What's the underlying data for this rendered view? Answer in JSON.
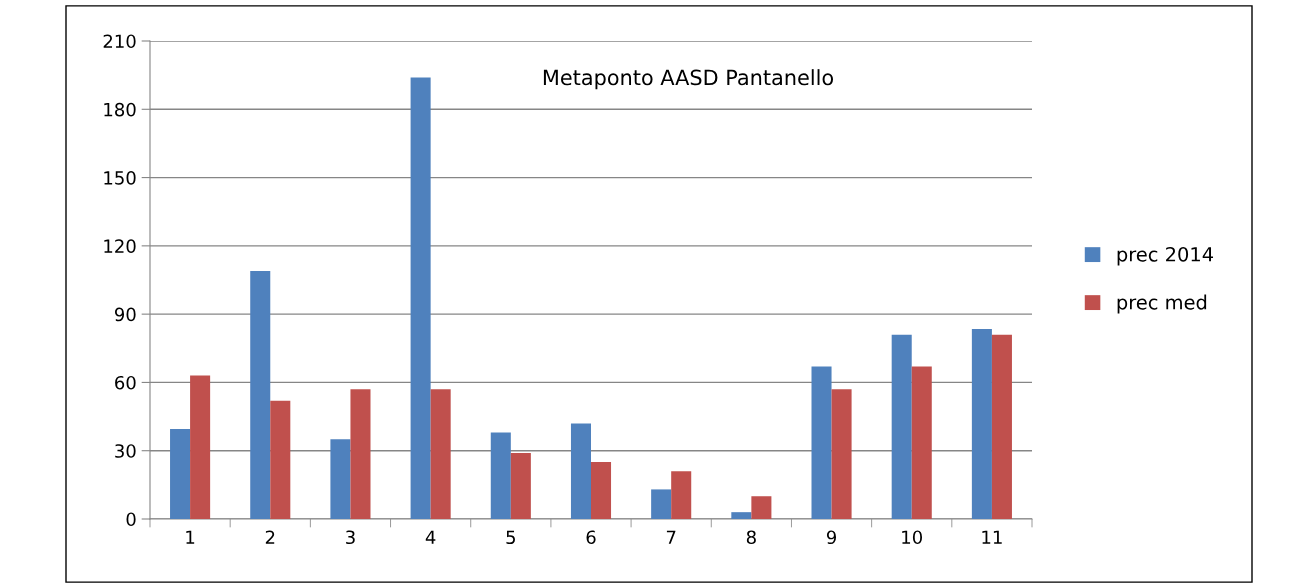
{
  "chart_data": {
    "type": "bar",
    "title": "Metaponto AASD Pantanello",
    "categories": [
      "1",
      "2",
      "3",
      "4",
      "5",
      "6",
      "7",
      "8",
      "9",
      "10",
      "11"
    ],
    "series": [
      {
        "name": "prec 2014",
        "color": "#4f81bd",
        "values": [
          39.5,
          109,
          35,
          194,
          38,
          42,
          13,
          3,
          67,
          81,
          83.5
        ]
      },
      {
        "name": "prec med",
        "color": "#c0504d",
        "values": [
          63,
          52,
          57,
          57,
          29,
          25,
          21,
          10,
          57,
          67,
          81
        ]
      }
    ],
    "ylim": [
      0,
      210
    ],
    "yticks": [
      0,
      30,
      60,
      90,
      120,
      150,
      180,
      210
    ],
    "grid": "y",
    "legend": "right"
  }
}
